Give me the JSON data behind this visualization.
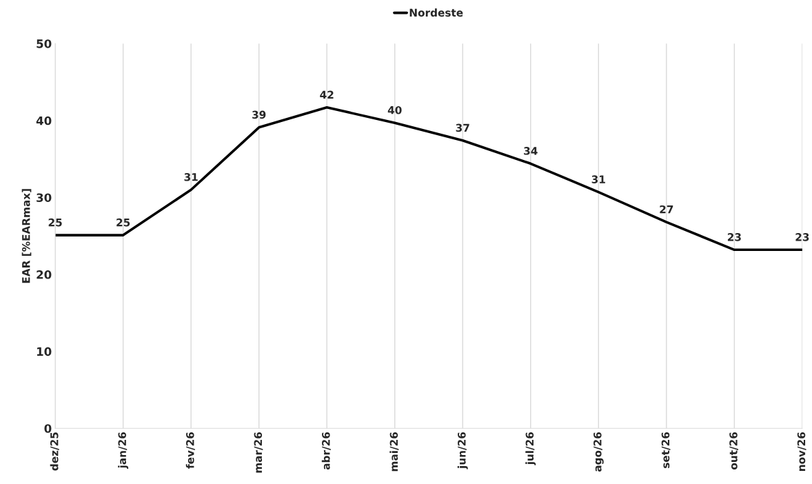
{
  "chart_data": {
    "type": "line",
    "ylabel": "EAR [%EARmax]",
    "categories": [
      "dez/25",
      "jan/26",
      "fev/26",
      "mar/26",
      "abr/26",
      "mai/26",
      "jun/26",
      "jul/26",
      "ago/26",
      "set/26",
      "out/26",
      "nov/26"
    ],
    "series": [
      {
        "name": "Nordeste",
        "color": "#000000",
        "values": [
          25.1,
          25.1,
          31.0,
          39.1,
          41.7,
          39.7,
          37.4,
          34.4,
          30.7,
          26.8,
          23.2,
          23.2
        ],
        "value_labels": [
          "25",
          "25",
          "31",
          "39",
          "42",
          "40",
          "37",
          "34",
          "31",
          "27",
          "23",
          "23"
        ]
      }
    ],
    "ylim": [
      0,
      50
    ],
    "yticks": [
      0,
      10,
      20,
      30,
      40,
      50
    ],
    "grid": "x",
    "legend": "top",
    "marker": "none",
    "line_style": "solid"
  }
}
